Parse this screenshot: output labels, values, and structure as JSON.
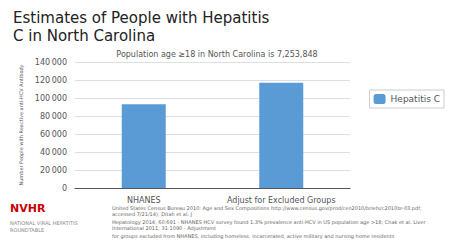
{
  "chart_data": {
    "type": "bar",
    "title": "Estimates of People with Hepatitis\nC in North Carolina",
    "subtitle": "Population age ≥18 in North Carolina is 7,253,848",
    "categories": [
      "NHANES",
      "Adjust for Excluded Groups"
    ],
    "series": [
      {
        "name": "Hepatitis C",
        "color": "#5B9BD5",
        "values": [
          93000,
          117000
        ]
      }
    ],
    "ylabel": "Number People with Reactive anti-HCV Antibody",
    "ylim": [
      0,
      140000
    ],
    "yticks": [
      0,
      {
        "value": 20000,
        "label": "20 000"
      },
      {
        "value": 40000,
        "label": "40 000"
      },
      {
        "value": 60000,
        "label": "60 000"
      },
      {
        "value": 80000,
        "label": "80 000"
      },
      {
        "value": 100000,
        "label": "100 000"
      },
      {
        "value": 120000,
        "label": "120 000"
      },
      {
        "value": 140000,
        "label": "140 000"
      }
    ],
    "grid": true,
    "legend": "right",
    "annotations": [
      "United States Census Bureau 2010: Age and Sex Compositions http://www.census.gov/prod/cen2010/briefs/c2010br-03.pdf; accessed 7/21/14); Ditah et al. J",
      "Hepatology 2014; 60:691 - NHANES HCV survey found 1.3% prevalence anti-HCV in US population age >18; Chak et al. Liver International 2011; 31:1090 - Adjustment",
      "for groups excluded from NHANES, including homeless, incarcerated, active military and nursing home residents",
      "NVHR",
      "NATIONAL VIRAL HEPATITIS\nROUNDTABLE"
    ]
  }
}
